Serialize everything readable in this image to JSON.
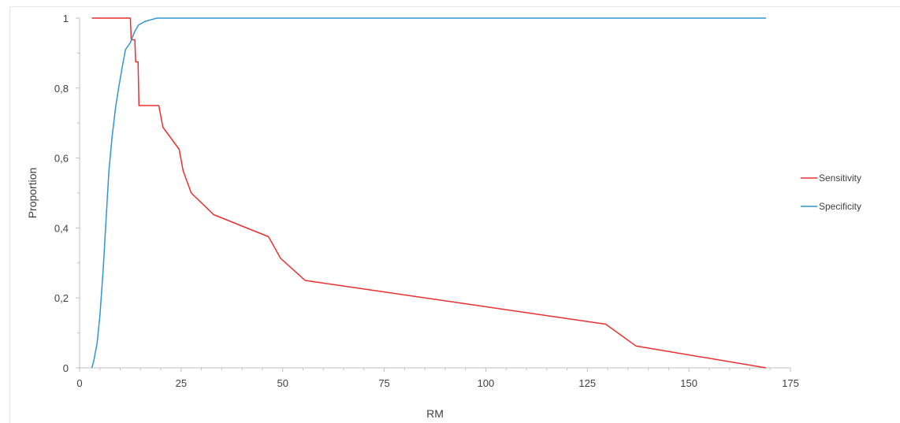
{
  "chart_data": {
    "type": "line",
    "title": "",
    "xlabel": "RM",
    "ylabel": "Proportion",
    "xlim": [
      0,
      175
    ],
    "ylim": [
      0,
      1
    ],
    "x_ticks": [
      0,
      25,
      50,
      75,
      100,
      125,
      150,
      175
    ],
    "x_tick_labels": [
      "0",
      "25",
      "50",
      "75",
      "100",
      "125",
      "150",
      "175"
    ],
    "y_ticks": [
      0,
      0.2,
      0.4,
      0.6,
      0.8,
      1
    ],
    "y_tick_labels": [
      "0",
      "0,2",
      "0,4",
      "0,6",
      "0,8",
      "1"
    ],
    "grid": false,
    "legend_position": "right",
    "series": [
      {
        "name": "Sensitivity",
        "color": "#e8302f",
        "points": [
          [
            3,
            1
          ],
          [
            12.5,
            1
          ],
          [
            12.7,
            0.938
          ],
          [
            13.6,
            0.938
          ],
          [
            13.8,
            0.875
          ],
          [
            14.4,
            0.875
          ],
          [
            14.6,
            0.75
          ],
          [
            19.5,
            0.75
          ],
          [
            20.5,
            0.688
          ],
          [
            24.5,
            0.625
          ],
          [
            25.5,
            0.563
          ],
          [
            27.5,
            0.5
          ],
          [
            33,
            0.438
          ],
          [
            46.5,
            0.375
          ],
          [
            49.5,
            0.313
          ],
          [
            55.5,
            0.25
          ],
          [
            129.5,
            0.125
          ],
          [
            137,
            0.0625
          ],
          [
            169,
            0
          ]
        ]
      },
      {
        "name": "Specificity",
        "color": "#2e96d3",
        "points": [
          [
            3,
            0
          ],
          [
            3.5,
            0.02
          ],
          [
            4.3,
            0.07
          ],
          [
            5,
            0.15
          ],
          [
            5.8,
            0.28
          ],
          [
            6.5,
            0.42
          ],
          [
            7.2,
            0.56
          ],
          [
            8,
            0.66
          ],
          [
            8.8,
            0.74
          ],
          [
            9.6,
            0.8
          ],
          [
            10.5,
            0.86
          ],
          [
            11.3,
            0.91
          ],
          [
            12.5,
            0.93
          ],
          [
            13.5,
            0.96
          ],
          [
            14.5,
            0.98
          ],
          [
            16,
            0.99
          ],
          [
            17.5,
            0.995
          ],
          [
            19,
            1
          ],
          [
            169,
            1
          ]
        ]
      }
    ]
  }
}
